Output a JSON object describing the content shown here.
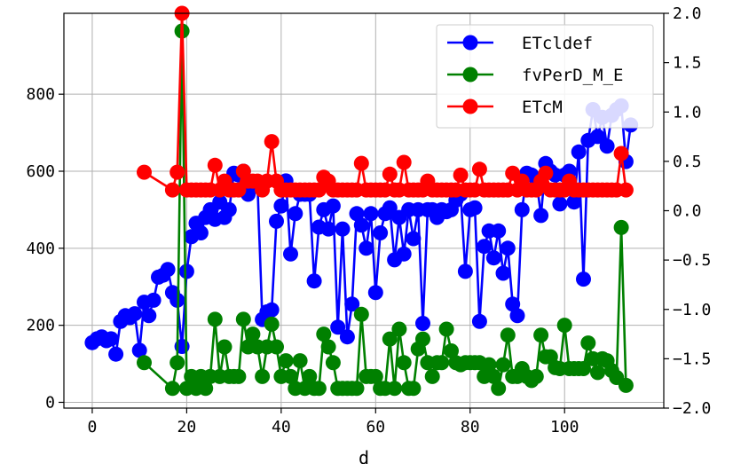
{
  "chart_data": {
    "type": "line",
    "xlabel": "d",
    "ylabel": "",
    "xlim": [
      -6,
      121
    ],
    "ylim_left": [
      -15,
      1010
    ],
    "ylim_right": [
      -2.0,
      2.0
    ],
    "grid": true,
    "legend_placement": "top-right",
    "x_ticks": [
      0,
      20,
      40,
      60,
      80,
      100
    ],
    "y_ticks_left": [
      0,
      200,
      400,
      600,
      800
    ],
    "y_ticks_right": [
      "2.0",
      "1.5",
      "1.0",
      "0.5",
      "0.0",
      "−0.5",
      "−1.0",
      "−1.5",
      "−2.0"
    ],
    "y_tick_values_right": [
      2.0,
      1.5,
      1.0,
      0.5,
      0.0,
      -0.5,
      -1.0,
      -1.5,
      -2.0
    ],
    "series": [
      {
        "name": "ETcldef",
        "axis": "left",
        "color": "#0000ff",
        "x": [
          0,
          1,
          2,
          3,
          4,
          5,
          6,
          7,
          8,
          9,
          10,
          11,
          12,
          13,
          14,
          15,
          16,
          17,
          18,
          19,
          20,
          21,
          22,
          23,
          24,
          25,
          26,
          27,
          28,
          29,
          30,
          31,
          32,
          33,
          34,
          35,
          36,
          37,
          38,
          39,
          40,
          41,
          42,
          43,
          44,
          45,
          46,
          47,
          48,
          49,
          50,
          51,
          52,
          53,
          54,
          55,
          56,
          57,
          58,
          59,
          60,
          61,
          62,
          63,
          64,
          65,
          66,
          67,
          68,
          69,
          70,
          71,
          72,
          73,
          74,
          75,
          76,
          77,
          78,
          79,
          80,
          81,
          82,
          83,
          84,
          85,
          86,
          87,
          88,
          89,
          90,
          91,
          92,
          93,
          94,
          95,
          96,
          97,
          98,
          99,
          100,
          101,
          102,
          103,
          104,
          105,
          106,
          107,
          108,
          109,
          110,
          111,
          112,
          113,
          114
        ],
        "values": [
          155,
          165,
          170,
          160,
          165,
          125,
          210,
          225,
          220,
          230,
          135,
          260,
          225,
          265,
          325,
          330,
          345,
          285,
          265,
          145,
          340,
          430,
          465,
          440,
          480,
          500,
          475,
          520,
          480,
          500,
          595,
          590,
          600,
          540,
          570,
          565,
          215,
          235,
          240,
          470,
          510,
          575,
          385,
          490,
          540,
          540,
          540,
          315,
          455,
          500,
          450,
          510,
          195,
          450,
          170,
          255,
          490,
          460,
          400,
          490,
          285,
          440,
          490,
          505,
          370,
          480,
          385,
          500,
          425,
          500,
          205,
          500,
          500,
          480,
          500,
          495,
          500,
          525,
          540,
          340,
          500,
          505,
          210,
          405,
          445,
          375,
          445,
          335,
          400,
          255,
          225,
          500,
          595,
          590,
          580,
          485,
          620,
          600,
          590,
          515,
          590,
          600,
          520,
          650,
          320,
          680,
          760,
          690,
          740,
          665,
          745,
          760,
          770,
          625,
          720
        ]
      },
      {
        "name": "fvPerD_M_E",
        "axis": "right",
        "color": "#008000",
        "x": [
          11,
          17,
          18,
          19,
          20,
          21,
          22,
          23,
          24,
          25,
          26,
          27,
          28,
          29,
          30,
          31,
          32,
          33,
          34,
          35,
          36,
          37,
          38,
          39,
          40,
          41,
          42,
          43,
          44,
          45,
          46,
          47,
          48,
          49,
          50,
          51,
          52,
          53,
          54,
          55,
          56,
          57,
          58,
          59,
          60,
          61,
          62,
          63,
          64,
          65,
          66,
          67,
          68,
          69,
          70,
          71,
          72,
          73,
          74,
          75,
          76,
          77,
          78,
          79,
          80,
          81,
          82,
          83,
          84,
          85,
          86,
          87,
          88,
          89,
          90,
          91,
          92,
          93,
          94,
          95,
          96,
          97,
          98,
          99,
          100,
          101,
          102,
          103,
          104,
          105,
          106,
          107,
          108,
          109,
          110,
          111,
          112,
          113
        ],
        "values": [
          -1.54,
          -1.8,
          -1.54,
          1.82,
          -1.8,
          -1.68,
          -1.8,
          -1.68,
          -1.8,
          -1.68,
          -1.1,
          -1.68,
          -1.38,
          -1.68,
          -1.68,
          -1.68,
          -1.1,
          -1.38,
          -1.25,
          -1.38,
          -1.68,
          -1.38,
          -1.15,
          -1.38,
          -1.68,
          -1.52,
          -1.68,
          -1.8,
          -1.52,
          -1.8,
          -1.68,
          -1.8,
          -1.8,
          -1.25,
          -1.38,
          -1.54,
          -1.8,
          -1.8,
          -1.8,
          -1.8,
          -1.8,
          -1.05,
          -1.68,
          -1.68,
          -1.68,
          -1.8,
          -1.8,
          -1.3,
          -1.8,
          -1.2,
          -1.54,
          -1.8,
          -1.8,
          -1.4,
          -1.3,
          -1.54,
          -1.68,
          -1.54,
          -1.54,
          -1.2,
          -1.42,
          -1.54,
          -1.56,
          -1.54,
          -1.54,
          -1.54,
          -1.54,
          -1.68,
          -1.56,
          -1.68,
          -1.8,
          -1.56,
          -1.26,
          -1.68,
          -1.68,
          -1.6,
          -1.68,
          -1.72,
          -1.68,
          -1.26,
          -1.48,
          -1.48,
          -1.59,
          -1.6,
          -1.16,
          -1.6,
          -1.6,
          -1.6,
          -1.6,
          -1.34,
          -1.5,
          -1.64,
          -1.5,
          -1.52,
          -1.62,
          -1.69,
          -0.17,
          -1.77
        ]
      },
      {
        "name": "ETcM",
        "axis": "right",
        "color": "#ff0000",
        "x": [
          11,
          17,
          18,
          19,
          20,
          21,
          22,
          23,
          24,
          25,
          26,
          27,
          28,
          29,
          30,
          31,
          32,
          33,
          34,
          35,
          36,
          37,
          38,
          39,
          40,
          41,
          42,
          43,
          44,
          45,
          46,
          47,
          48,
          49,
          50,
          51,
          52,
          53,
          54,
          55,
          56,
          57,
          58,
          59,
          60,
          61,
          62,
          63,
          64,
          65,
          66,
          67,
          68,
          69,
          70,
          71,
          72,
          73,
          74,
          75,
          76,
          77,
          78,
          79,
          80,
          81,
          82,
          83,
          84,
          85,
          86,
          87,
          88,
          89,
          90,
          91,
          92,
          93,
          94,
          95,
          96,
          97,
          98,
          99,
          100,
          101,
          102,
          103,
          104,
          105,
          106,
          107,
          108,
          109,
          110,
          111,
          112,
          113
        ],
        "values": [
          0.39,
          0.21,
          0.39,
          2.0,
          0.21,
          0.21,
          0.21,
          0.21,
          0.21,
          0.21,
          0.46,
          0.21,
          0.3,
          0.21,
          0.21,
          0.21,
          0.4,
          0.3,
          0.3,
          0.3,
          0.21,
          0.3,
          0.7,
          0.3,
          0.21,
          0.21,
          0.21,
          0.21,
          0.21,
          0.21,
          0.21,
          0.21,
          0.21,
          0.34,
          0.3,
          0.21,
          0.21,
          0.21,
          0.21,
          0.21,
          0.21,
          0.48,
          0.21,
          0.21,
          0.21,
          0.21,
          0.21,
          0.37,
          0.21,
          0.21,
          0.49,
          0.21,
          0.21,
          0.21,
          0.21,
          0.3,
          0.21,
          0.21,
          0.21,
          0.21,
          0.21,
          0.21,
          0.36,
          0.21,
          0.21,
          0.21,
          0.42,
          0.21,
          0.21,
          0.21,
          0.21,
          0.21,
          0.21,
          0.38,
          0.21,
          0.3,
          0.21,
          0.21,
          0.21,
          0.3,
          0.38,
          0.21,
          0.21,
          0.21,
          0.21,
          0.3,
          0.21,
          0.21,
          0.21,
          0.21,
          0.21,
          0.21,
          0.21,
          0.21,
          0.21,
          0.21,
          0.58,
          0.21
        ]
      }
    ]
  }
}
